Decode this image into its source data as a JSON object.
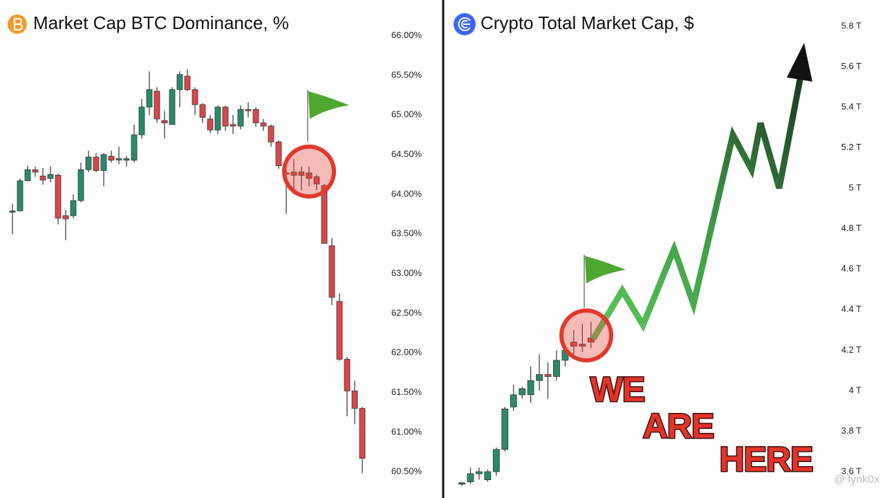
{
  "chart_data": [
    {
      "type": "candlestick",
      "title": "Market Cap BTC Dominance, %",
      "up_color": "#2a8a6c",
      "down_color": "#d9474a",
      "ylim": [
        60.17,
        66.45
      ],
      "yticks": [
        {
          "value": 66,
          "label": "66.00%"
        },
        {
          "value": 65.5,
          "label": "65.50%"
        },
        {
          "value": 65,
          "label": "65.00%"
        },
        {
          "value": 64.5,
          "label": "64.50%"
        },
        {
          "value": 64,
          "label": "64.00%"
        },
        {
          "value": 63.5,
          "label": "63.50%"
        },
        {
          "value": 63,
          "label": "63.00%"
        },
        {
          "value": 62.5,
          "label": "62.50%"
        },
        {
          "value": 62,
          "label": "62.00%"
        },
        {
          "value": 61.5,
          "label": "61.50%"
        },
        {
          "value": 61,
          "label": "61.00%"
        },
        {
          "value": 60.5,
          "label": "60.50%"
        }
      ],
      "open": [
        63.79,
        63.79,
        64.17,
        64.31,
        64.23,
        64.2,
        64.24,
        63.73,
        63.73,
        63.92,
        64.31,
        64.47,
        64.3,
        64.48,
        64.44,
        64.43,
        64.43,
        64.75,
        65.1,
        65.3,
        64.93,
        64.88,
        65.32,
        65.49,
        65.32,
        65.13,
        64.95,
        64.81,
        65.1,
        64.88,
        64.86,
        65.07,
        65.07,
        64.9,
        64.86,
        64.66,
        64.27,
        64.28,
        64.28,
        64.27,
        64.22,
        64.11,
        63.35,
        62.65,
        61.92,
        61.52,
        61.3
      ],
      "high": [
        63.88,
        64.2,
        64.36,
        64.35,
        64.33,
        64.35,
        64.26,
        63.8,
        64.0,
        64.4,
        64.55,
        64.52,
        64.52,
        64.55,
        64.6,
        64.48,
        64.88,
        65.2,
        65.55,
        65.35,
        65.05,
        65.35,
        65.55,
        65.58,
        65.35,
        65.15,
        65.0,
        65.12,
        65.12,
        65.0,
        65.12,
        65.16,
        65.1,
        64.95,
        64.88,
        64.68,
        64.3,
        64.45,
        64.35,
        64.35,
        64.25,
        64.13,
        63.45,
        62.75,
        61.95,
        61.65,
        61.32
      ],
      "low": [
        63.5,
        63.79,
        64.17,
        64.22,
        64.12,
        64.15,
        63.62,
        63.42,
        63.7,
        63.9,
        64.28,
        64.28,
        64.1,
        64.4,
        64.38,
        64.35,
        64.4,
        64.7,
        65.0,
        64.9,
        64.7,
        64.88,
        65.1,
        65.3,
        65.0,
        64.9,
        64.77,
        64.76,
        64.8,
        64.76,
        64.82,
        64.97,
        64.85,
        64.8,
        64.6,
        64.32,
        63.75,
        64.0,
        64.05,
        64.1,
        64.05,
        63.38,
        62.6,
        61.9,
        61.2,
        61.1,
        60.48
      ],
      "close": [
        63.79,
        64.17,
        64.31,
        64.28,
        64.18,
        64.25,
        63.7,
        63.69,
        63.92,
        64.31,
        64.47,
        64.3,
        64.5,
        64.43,
        64.45,
        64.45,
        64.75,
        65.1,
        65.32,
        64.95,
        64.9,
        65.32,
        65.51,
        65.32,
        65.13,
        64.97,
        64.81,
        65.1,
        64.86,
        64.86,
        65.07,
        65.06,
        64.9,
        64.86,
        64.66,
        64.36,
        64.26,
        64.24,
        64.24,
        64.2,
        64.13,
        63.38,
        62.7,
        61.92,
        61.52,
        61.3,
        60.67
      ]
    },
    {
      "type": "candlestick",
      "title": "Crypto Total Market Cap, $",
      "up_color": "#2a8a6c",
      "down_color": "#d9474a",
      "ylim": [
        3.47,
        5.93
      ],
      "yticks": [
        {
          "value": 5.8,
          "label": "5.8 T"
        },
        {
          "value": 5.6,
          "label": "5.6 T"
        },
        {
          "value": 5.4,
          "label": "5.4 T"
        },
        {
          "value": 5.2,
          "label": "5.2 T"
        },
        {
          "value": 5,
          "label": "5 T"
        },
        {
          "value": 4.8,
          "label": "4.8 T"
        },
        {
          "value": 4.6,
          "label": "4.6 T"
        },
        {
          "value": 4.4,
          "label": "4.4 T"
        },
        {
          "value": 4.2,
          "label": "4.2 T"
        },
        {
          "value": 4,
          "label": "4 T"
        },
        {
          "value": 3.8,
          "label": "3.8 T"
        },
        {
          "value": 3.6,
          "label": "3.6 T"
        }
      ],
      "open": [
        3.54,
        3.55,
        3.59,
        3.56,
        3.6,
        3.71,
        3.92,
        3.98,
        3.98,
        4.05,
        4.08,
        4.07,
        4.15,
        4.24,
        4.23,
        4.26
      ],
      "high": [
        3.55,
        3.62,
        3.62,
        3.61,
        3.72,
        3.92,
        4.03,
        4.02,
        4.12,
        4.18,
        4.14,
        4.2,
        4.22,
        4.3,
        4.33,
        4.34
      ],
      "low": [
        3.53,
        3.54,
        3.56,
        3.55,
        3.58,
        3.7,
        3.9,
        3.96,
        3.94,
        4.0,
        3.96,
        4.05,
        4.12,
        4.18,
        4.19,
        4.21
      ],
      "close": [
        3.545,
        3.59,
        3.6,
        3.6,
        3.71,
        3.91,
        3.98,
        4.01,
        4.05,
        4.08,
        4.07,
        4.15,
        4.2,
        4.22,
        4.22,
        4.24
      ],
      "annotations": [
        "WE",
        "ARE",
        "HERE"
      ]
    }
  ],
  "watermark": "@ lynk0x"
}
